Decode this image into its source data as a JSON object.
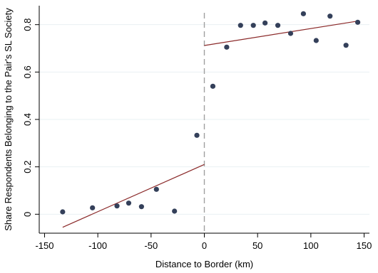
{
  "chart_data": {
    "type": "scatter",
    "xlabel": "Distance to Border (km)",
    "ylabel": "Share Respondents Belonging to the Pair's SL Society",
    "xlim": [
      -155,
      155
    ],
    "ylim": [
      -0.08,
      0.88
    ],
    "xticks": [
      -150,
      -100,
      -50,
      0,
      50,
      100,
      150
    ],
    "yticks": [
      0,
      0.2,
      0.4,
      0.6,
      0.8
    ],
    "ytick_labels": [
      "0",
      "0.2",
      "0.4",
      "0.6",
      "0.8"
    ],
    "grid": true,
    "cutoff": 0,
    "points": [
      {
        "x": -133,
        "y": 0.01
      },
      {
        "x": -105,
        "y": 0.027
      },
      {
        "x": -82,
        "y": 0.035
      },
      {
        "x": -71,
        "y": 0.047
      },
      {
        "x": -59,
        "y": 0.032
      },
      {
        "x": -45,
        "y": 0.105
      },
      {
        "x": -28,
        "y": 0.013
      },
      {
        "x": -7,
        "y": 0.333
      },
      {
        "x": 8,
        "y": 0.54
      },
      {
        "x": 21,
        "y": 0.705
      },
      {
        "x": 34,
        "y": 0.797
      },
      {
        "x": 46,
        "y": 0.797
      },
      {
        "x": 57,
        "y": 0.807
      },
      {
        "x": 69,
        "y": 0.797
      },
      {
        "x": 81,
        "y": 0.763
      },
      {
        "x": 93,
        "y": 0.846
      },
      {
        "x": 105,
        "y": 0.733
      },
      {
        "x": 118,
        "y": 0.836
      },
      {
        "x": 133,
        "y": 0.713
      },
      {
        "x": 144,
        "y": 0.81
      }
    ],
    "fit_lines": [
      {
        "x": [
          -133,
          0
        ],
        "y": [
          -0.055,
          0.21
        ]
      },
      {
        "x": [
          0,
          144
        ],
        "y": [
          0.712,
          0.815
        ]
      }
    ]
  }
}
